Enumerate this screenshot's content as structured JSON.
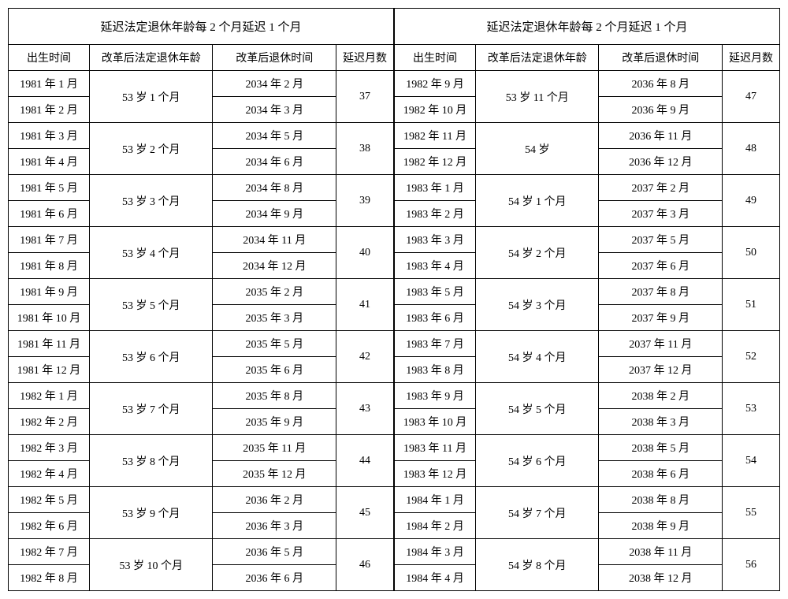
{
  "title": "延迟法定退休年龄每 2 个月延迟 1 个月",
  "headers": {
    "birth": "出生时间",
    "age": "改革后法定退休年龄",
    "retire": "改革后退休时间",
    "delay": "延迟月数"
  },
  "left": [
    {
      "births": [
        "1981 年 1 月",
        "1981 年 2 月"
      ],
      "age": "53 岁 1 个月",
      "retires": [
        "2034 年 2 月",
        "2034 年 3 月"
      ],
      "delay": "37"
    },
    {
      "births": [
        "1981 年 3 月",
        "1981 年 4 月"
      ],
      "age": "53 岁 2 个月",
      "retires": [
        "2034 年 5 月",
        "2034 年 6 月"
      ],
      "delay": "38"
    },
    {
      "births": [
        "1981 年 5 月",
        "1981 年 6 月"
      ],
      "age": "53 岁 3 个月",
      "retires": [
        "2034 年 8 月",
        "2034 年 9 月"
      ],
      "delay": "39"
    },
    {
      "births": [
        "1981 年 7 月",
        "1981 年 8 月"
      ],
      "age": "53 岁 4 个月",
      "retires": [
        "2034 年 11 月",
        "2034 年 12 月"
      ],
      "delay": "40"
    },
    {
      "births": [
        "1981 年 9 月",
        "1981 年 10 月"
      ],
      "age": "53 岁 5 个月",
      "retires": [
        "2035 年 2 月",
        "2035 年 3 月"
      ],
      "delay": "41"
    },
    {
      "births": [
        "1981 年 11 月",
        "1981 年 12 月"
      ],
      "age": "53 岁 6 个月",
      "retires": [
        "2035 年 5 月",
        "2035 年 6 月"
      ],
      "delay": "42"
    },
    {
      "births": [
        "1982 年 1 月",
        "1982 年 2 月"
      ],
      "age": "53 岁 7 个月",
      "retires": [
        "2035 年 8 月",
        "2035 年 9 月"
      ],
      "delay": "43"
    },
    {
      "births": [
        "1982 年 3 月",
        "1982 年 4 月"
      ],
      "age": "53 岁 8 个月",
      "retires": [
        "2035 年 11 月",
        "2035 年 12 月"
      ],
      "delay": "44"
    },
    {
      "births": [
        "1982 年 5 月",
        "1982 年 6 月"
      ],
      "age": "53 岁 9 个月",
      "retires": [
        "2036 年 2 月",
        "2036 年 3 月"
      ],
      "delay": "45"
    },
    {
      "births": [
        "1982 年 7 月",
        "1982 年 8 月"
      ],
      "age": "53 岁 10 个月",
      "retires": [
        "2036 年 5 月",
        "2036 年 6 月"
      ],
      "delay": "46"
    }
  ],
  "right": [
    {
      "births": [
        "1982 年 9 月",
        "1982 年 10 月"
      ],
      "age": "53 岁 11 个月",
      "retires": [
        "2036 年 8 月",
        "2036 年 9 月"
      ],
      "delay": "47"
    },
    {
      "births": [
        "1982 年 11 月",
        "1982 年 12 月"
      ],
      "age": "54 岁",
      "retires": [
        "2036 年 11 月",
        "2036 年 12 月"
      ],
      "delay": "48"
    },
    {
      "births": [
        "1983 年 1 月",
        "1983 年 2 月"
      ],
      "age": "54 岁 1 个月",
      "retires": [
        "2037 年 2 月",
        "2037 年 3 月"
      ],
      "delay": "49"
    },
    {
      "births": [
        "1983 年 3 月",
        "1983 年 4 月"
      ],
      "age": "54 岁 2 个月",
      "retires": [
        "2037 年 5 月",
        "2037 年 6 月"
      ],
      "delay": "50"
    },
    {
      "births": [
        "1983 年 5 月",
        "1983 年 6 月"
      ],
      "age": "54 岁 3 个月",
      "retires": [
        "2037 年 8 月",
        "2037 年 9 月"
      ],
      "delay": "51"
    },
    {
      "births": [
        "1983 年 7 月",
        "1983 年 8 月"
      ],
      "age": "54 岁 4 个月",
      "retires": [
        "2037 年 11 月",
        "2037 年 12 月"
      ],
      "delay": "52"
    },
    {
      "births": [
        "1983 年 9 月",
        "1983 年 10 月"
      ],
      "age": "54 岁 5 个月",
      "retires": [
        "2038 年 2 月",
        "2038 年 3 月"
      ],
      "delay": "53"
    },
    {
      "births": [
        "1983 年 11 月",
        "1983 年 12 月"
      ],
      "age": "54 岁 6 个月",
      "retires": [
        "2038 年 5 月",
        "2038 年 6 月"
      ],
      "delay": "54"
    },
    {
      "births": [
        "1984 年 1 月",
        "1984 年 2 月"
      ],
      "age": "54 岁 7 个月",
      "retires": [
        "2038 年 8 月",
        "2038 年 9 月"
      ],
      "delay": "55"
    },
    {
      "births": [
        "1984 年 3 月",
        "1984 年 4 月"
      ],
      "age": "54 岁 8 个月",
      "retires": [
        "2038 年 11 月",
        "2038 年 12 月"
      ],
      "delay": "56"
    }
  ]
}
